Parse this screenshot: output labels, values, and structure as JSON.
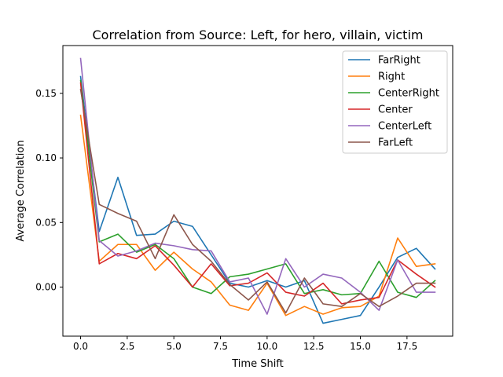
{
  "chart_data": {
    "type": "line",
    "title": "Correlation from Source: Left, for hero, villain, victim",
    "xlabel": "Time Shift",
    "ylabel": "Average Correlation",
    "xlim": [
      -0.95,
      19.95
    ],
    "ylim": [
      -0.038,
      0.187
    ],
    "xticks": [
      0.0,
      2.5,
      5.0,
      7.5,
      10.0,
      12.5,
      15.0,
      17.5
    ],
    "xtick_labels": [
      "0.0",
      "2.5",
      "5.0",
      "7.5",
      "10.0",
      "12.5",
      "15.0",
      "17.5"
    ],
    "yticks": [
      0.0,
      0.05,
      0.1,
      0.15
    ],
    "ytick_labels": [
      "0.00",
      "0.05",
      "0.10",
      "0.15"
    ],
    "grid": false,
    "legend_position": "upper-right",
    "x": [
      0,
      1,
      2,
      3,
      4,
      5,
      6,
      7,
      8,
      9,
      10,
      11,
      12,
      13,
      14,
      15,
      16,
      17,
      18,
      19
    ],
    "series": [
      {
        "name": "FarRight",
        "color": "#1f77b4",
        "values": [
          0.163,
          0.043,
          0.085,
          0.04,
          0.041,
          0.051,
          0.047,
          0.025,
          0.003,
          0.0,
          0.005,
          0.0,
          0.005,
          -0.028,
          -0.025,
          -0.022,
          0.0,
          0.023,
          0.03,
          0.014
        ]
      },
      {
        "name": "Right",
        "color": "#ff7f0e",
        "values": [
          0.133,
          0.02,
          0.033,
          0.033,
          0.013,
          0.027,
          0.014,
          0.004,
          -0.014,
          -0.018,
          0.003,
          -0.022,
          -0.015,
          -0.021,
          -0.016,
          -0.015,
          -0.007,
          0.038,
          0.016,
          0.018
        ]
      },
      {
        "name": "CenterRight",
        "color": "#2ca02c",
        "values": [
          0.16,
          0.035,
          0.041,
          0.027,
          0.033,
          0.022,
          0.0,
          -0.005,
          0.008,
          0.01,
          0.014,
          0.018,
          -0.005,
          -0.002,
          -0.006,
          -0.005,
          0.02,
          -0.004,
          -0.008,
          0.005
        ]
      },
      {
        "name": "Center",
        "color": "#d62728",
        "values": [
          0.158,
          0.018,
          0.026,
          0.022,
          0.032,
          0.017,
          0.0,
          0.018,
          0.001,
          0.003,
          0.011,
          -0.004,
          -0.007,
          0.003,
          -0.013,
          -0.01,
          -0.008,
          0.021,
          0.01,
          0.0
        ]
      },
      {
        "name": "CenterLeft",
        "color": "#9467bd",
        "values": [
          0.177,
          0.036,
          0.024,
          0.028,
          0.034,
          0.032,
          0.029,
          0.028,
          0.004,
          0.007,
          -0.021,
          0.022,
          0.0,
          0.01,
          0.007,
          -0.004,
          -0.018,
          0.021,
          -0.004,
          -0.004
        ]
      },
      {
        "name": "FarLeft",
        "color": "#8c564b",
        "values": [
          0.153,
          0.064,
          0.057,
          0.051,
          0.022,
          0.056,
          0.033,
          0.02,
          0.002,
          -0.01,
          0.004,
          -0.02,
          0.007,
          -0.013,
          -0.015,
          -0.005,
          -0.015,
          -0.007,
          0.003,
          0.003
        ]
      }
    ]
  }
}
